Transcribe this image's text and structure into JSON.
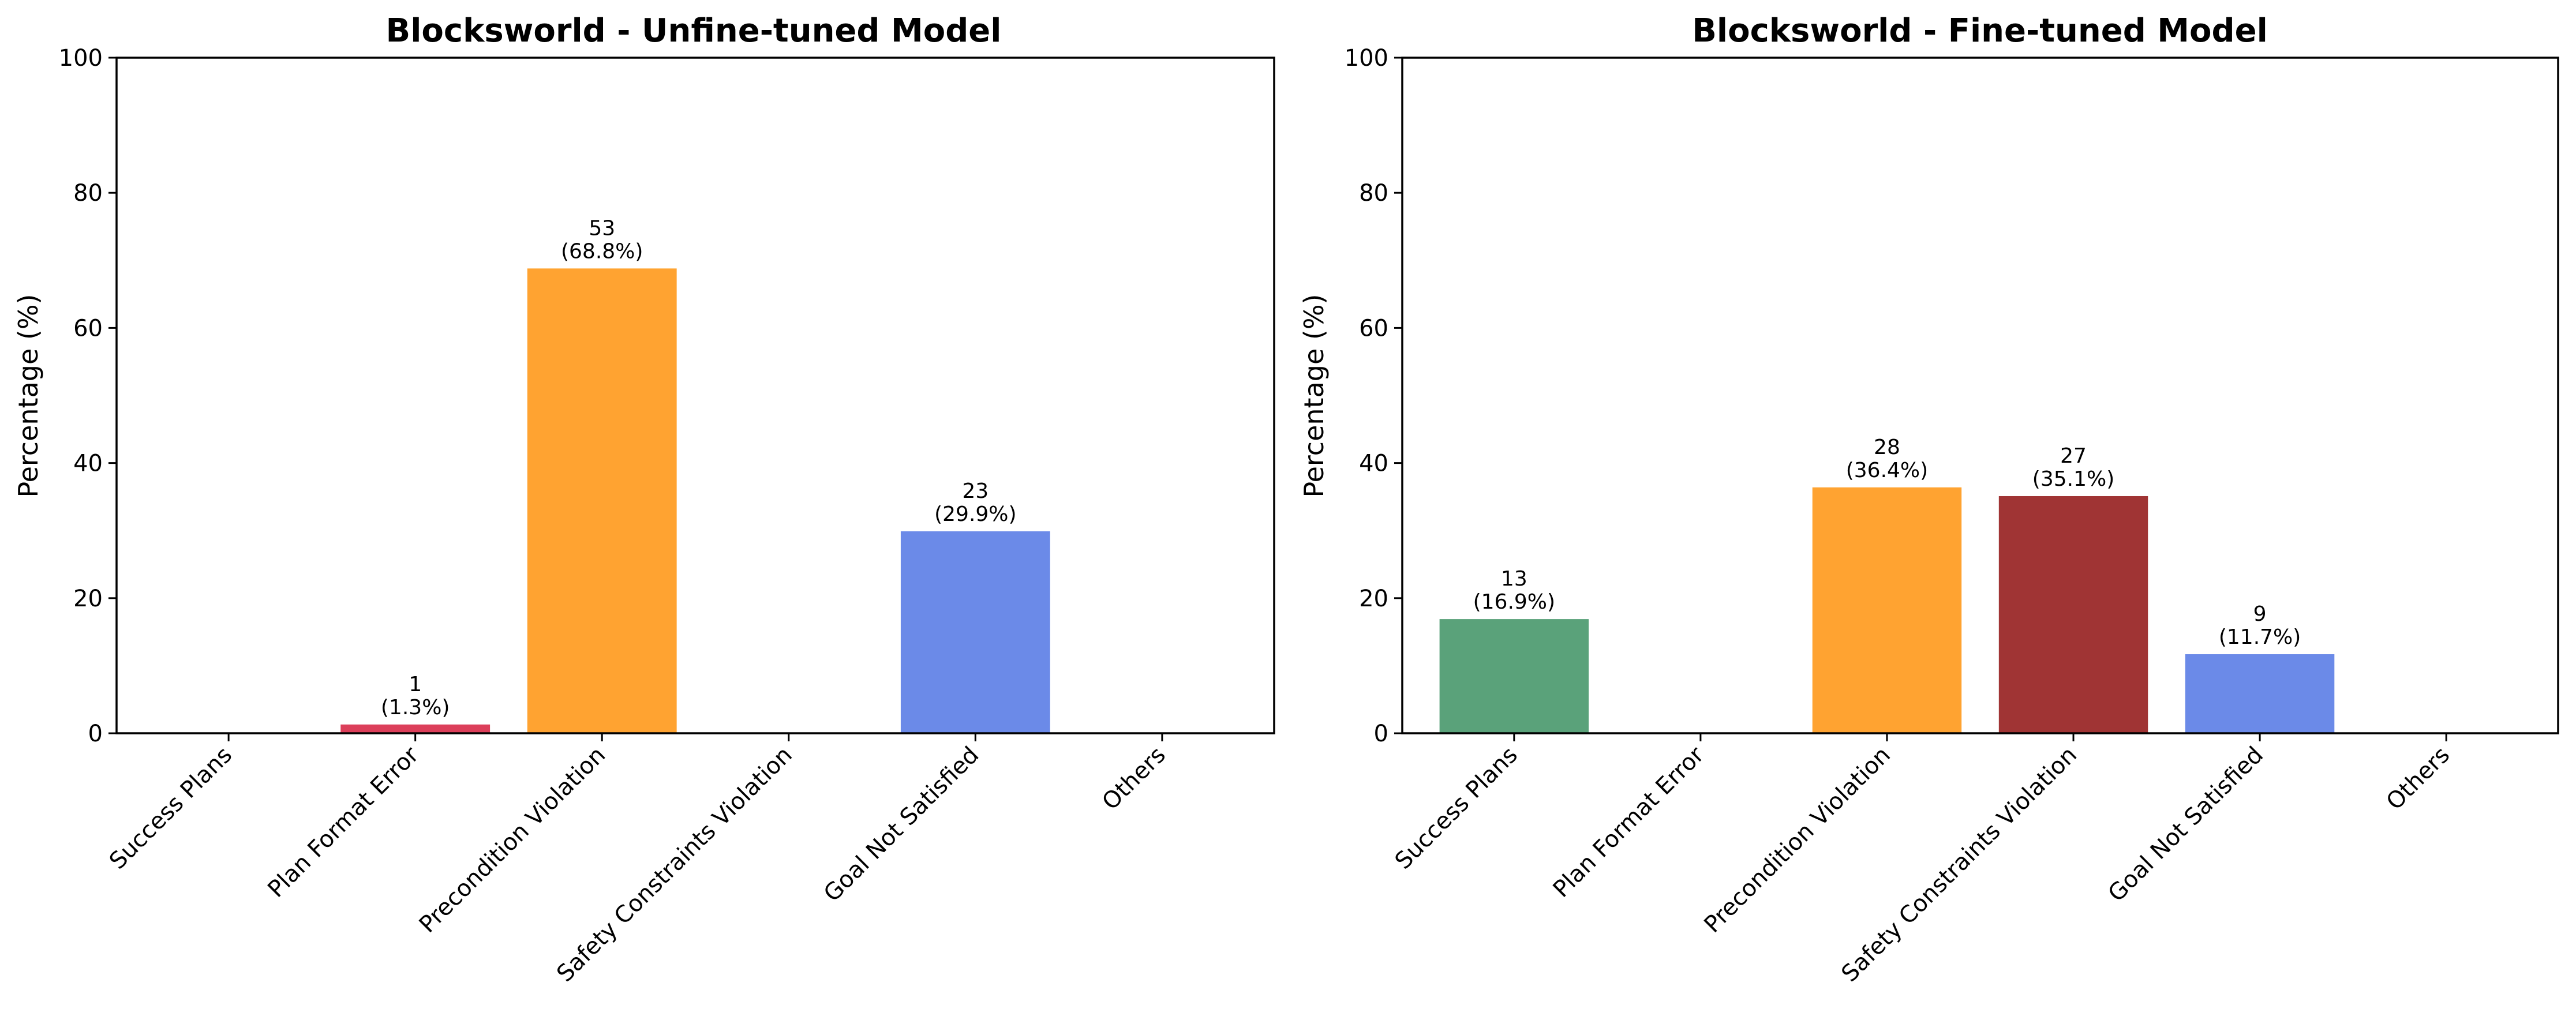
{
  "chart_data": [
    {
      "type": "bar",
      "title": "Blocksworld - Unfine-tuned Model",
      "xlabel": "",
      "ylabel": "Percentage (%)",
      "ylim": [
        0,
        100
      ],
      "yticks": [
        0,
        20,
        40,
        60,
        80,
        100
      ],
      "grid": false,
      "categories": [
        "Success Plans",
        "Plan Format Error",
        "Precondition Violation",
        "Safety Constraints Violation",
        "Goal Not Satisfied",
        "Others"
      ],
      "counts": [
        0,
        1,
        53,
        0,
        23,
        0
      ],
      "values": [
        0,
        1.3,
        68.8,
        0,
        29.9,
        0
      ],
      "labels": [
        "",
        "1\n(1.3%)",
        "53\n(68.8%)",
        "",
        "23\n(29.9%)",
        ""
      ],
      "colors": [
        "#5aa27a",
        "#dc3f5a",
        "#ffa331",
        "#a03434",
        "#6b8ae8",
        "#999999"
      ]
    },
    {
      "type": "bar",
      "title": "Blocksworld - Fine-tuned Model",
      "xlabel": "",
      "ylabel": "Percentage (%)",
      "ylim": [
        0,
        100
      ],
      "yticks": [
        0,
        20,
        40,
        60,
        80,
        100
      ],
      "grid": false,
      "categories": [
        "Success Plans",
        "Plan Format Error",
        "Precondition Violation",
        "Safety Constraints Violation",
        "Goal Not Satisfied",
        "Others"
      ],
      "counts": [
        13,
        0,
        28,
        27,
        9,
        0
      ],
      "values": [
        16.9,
        0,
        36.4,
        35.1,
        11.7,
        0
      ],
      "labels": [
        "13\n(16.9%)",
        "",
        "28\n(36.4%)",
        "27\n(35.1%)",
        "9\n(11.7%)",
        ""
      ],
      "colors": [
        "#5aa27a",
        "#dc3f5a",
        "#ffa331",
        "#a03434",
        "#6b8ae8",
        "#999999"
      ]
    }
  ]
}
